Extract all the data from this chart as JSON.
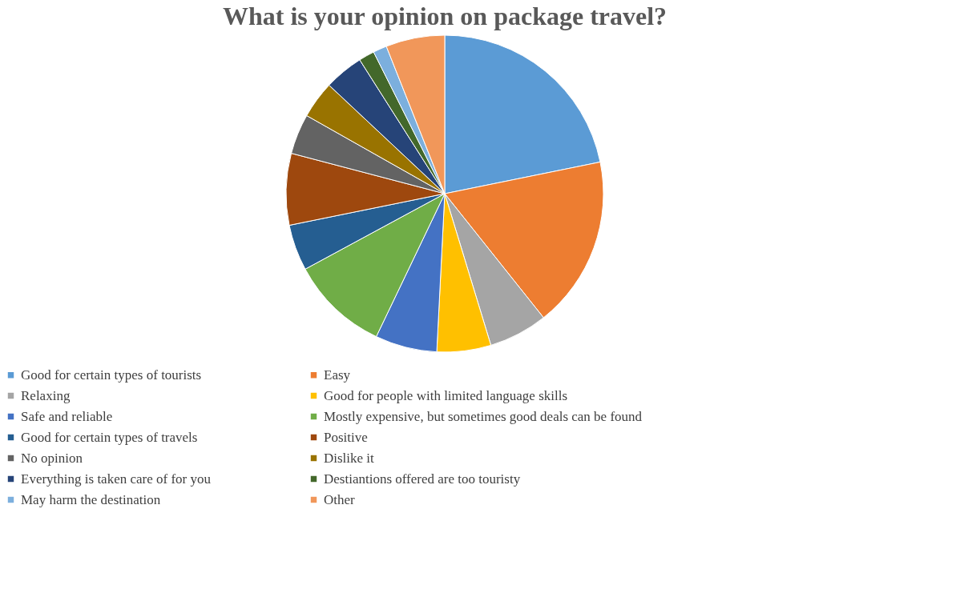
{
  "chart_data": {
    "type": "pie",
    "title": "What is your opinion on package travel?",
    "categories": [
      "Good for certain types of tourists",
      "Easy",
      "Relaxing",
      "Good for people with limited language skills",
      "Safe and reliable",
      "Mostly expensive, but sometimes good deals can be found",
      "Good for certain types of travels",
      "Positive",
      "No opinion",
      "Dislike it",
      "Everything is taken care of for you",
      "Destiantions offered are too touristy",
      "May harm the destination",
      "Other"
    ],
    "values": [
      21.8,
      17.5,
      6.0,
      5.5,
      6.3,
      10.0,
      4.7,
      7.3,
      4.1,
      3.8,
      4.0,
      1.6,
      1.4,
      6.0
    ],
    "colors": [
      "#5b9bd5",
      "#ed7d31",
      "#a5a5a5",
      "#ffc000",
      "#4472c4",
      "#70ad47",
      "#255e91",
      "#9e480e",
      "#636363",
      "#997300",
      "#264478",
      "#43682b",
      "#7cafdd",
      "#f1975a"
    ],
    "legend": "bottom"
  }
}
